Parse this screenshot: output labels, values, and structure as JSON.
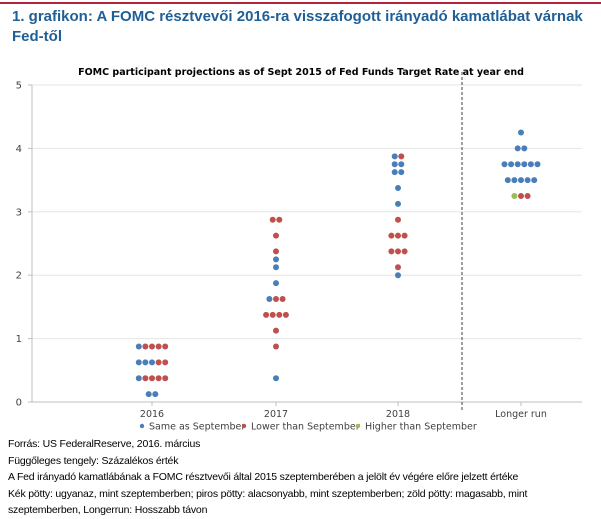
{
  "heading": {
    "line1": "1. grafikon: A FOMC résztvevői 2016-ra visszafogott irányadó kamatlábat várnak",
    "line2": "Fed-től"
  },
  "colors": {
    "same": "#4a7ebb",
    "lower": "#c0504d",
    "higher": "#9bbb59",
    "title": "#1f5f96"
  },
  "chart_data": {
    "type": "scatter",
    "title": "FOMC participant projections as of Sept 2015 of Fed Funds Target Rate at year end",
    "xlabel": "",
    "ylabel": "",
    "ylim": [
      0,
      5
    ],
    "yticks": [
      "0",
      "1",
      "2",
      "3",
      "4",
      "5"
    ],
    "categories": [
      "2016",
      "2017",
      "2018",
      "Longer run"
    ],
    "legend": [
      {
        "key": "same",
        "label": "Same as September"
      },
      {
        "key": "lower",
        "label": "Lower than September"
      },
      {
        "key": "higher",
        "label": "Higher than September"
      }
    ],
    "legend_position": "bottom",
    "grid": true,
    "points": [
      {
        "category": "2016",
        "rows": [
          {
            "value": 0.875,
            "dots": [
              "same",
              "lower",
              "lower",
              "lower",
              "lower"
            ]
          },
          {
            "value": 0.625,
            "dots": [
              "same",
              "same",
              "same",
              "lower",
              "lower"
            ]
          },
          {
            "value": 0.375,
            "dots": [
              "same",
              "lower",
              "lower",
              "lower",
              "lower"
            ]
          },
          {
            "value": 0.125,
            "dots": [
              "same",
              "same"
            ]
          }
        ]
      },
      {
        "category": "2017",
        "rows": [
          {
            "value": 2.875,
            "dots": [
              "lower",
              "lower"
            ]
          },
          {
            "value": 2.625,
            "dots": [
              "lower"
            ]
          },
          {
            "value": 2.375,
            "dots": [
              "lower"
            ]
          },
          {
            "value": 2.25,
            "dots": [
              "same"
            ]
          },
          {
            "value": 2.125,
            "dots": [
              "same"
            ]
          },
          {
            "value": 1.875,
            "dots": [
              "same"
            ]
          },
          {
            "value": 1.625,
            "dots": [
              "same",
              "lower",
              "lower"
            ]
          },
          {
            "value": 1.375,
            "dots": [
              "lower",
              "lower",
              "lower",
              "lower"
            ]
          },
          {
            "value": 1.125,
            "dots": [
              "lower"
            ]
          },
          {
            "value": 0.875,
            "dots": [
              "lower"
            ]
          },
          {
            "value": 0.375,
            "dots": [
              "same"
            ]
          }
        ]
      },
      {
        "category": "2018",
        "rows": [
          {
            "value": 3.875,
            "dots": [
              "same",
              "lower"
            ]
          },
          {
            "value": 3.75,
            "dots": [
              "same",
              "same"
            ]
          },
          {
            "value": 3.625,
            "dots": [
              "same",
              "same"
            ]
          },
          {
            "value": 3.375,
            "dots": [
              "same"
            ]
          },
          {
            "value": 3.125,
            "dots": [
              "same"
            ]
          },
          {
            "value": 2.875,
            "dots": [
              "lower"
            ]
          },
          {
            "value": 2.625,
            "dots": [
              "lower",
              "lower",
              "lower"
            ]
          },
          {
            "value": 2.375,
            "dots": [
              "lower",
              "lower",
              "lower"
            ]
          },
          {
            "value": 2.125,
            "dots": [
              "lower"
            ]
          },
          {
            "value": 2.0,
            "dots": [
              "same"
            ]
          }
        ]
      },
      {
        "category": "Longer run",
        "rows": [
          {
            "value": 4.25,
            "dots": [
              "same"
            ]
          },
          {
            "value": 4.0,
            "dots": [
              "same",
              "same"
            ]
          },
          {
            "value": 3.75,
            "dots": [
              "same",
              "same",
              "same",
              "same",
              "same",
              "same"
            ]
          },
          {
            "value": 3.5,
            "dots": [
              "same",
              "same",
              "same",
              "same",
              "same"
            ]
          },
          {
            "value": 3.25,
            "dots": [
              "higher",
              "lower",
              "lower"
            ]
          }
        ]
      }
    ]
  },
  "footer": [
    "Forrás: US FederalReserve, 2016. március",
    "Függőleges tengely: Százalékos érték",
    "A Fed irányadó kamatlábának a FOMC résztvevői által 2015 szeptemberében a jelölt év végére előre jelzett értéke",
    "Kék pötty: ugyanaz, mint szeptemberben; piros pötty: alacsonyabb, mint szeptemberben; zöld pötty: magasabb, mint",
    "szeptemberben, Longerrun: Hosszabb távon"
  ]
}
